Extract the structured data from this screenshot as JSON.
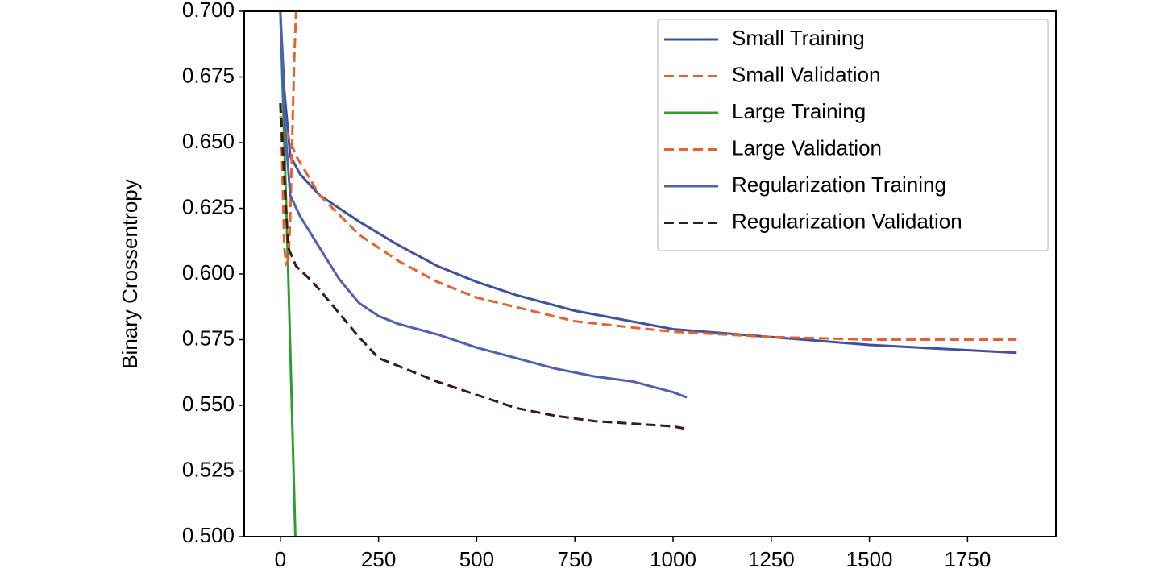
{
  "chart_data": {
    "type": "line",
    "y_label": "Binary Crossentropy",
    "xlim": [
      -92,
      1975
    ],
    "ylim": [
      0.5,
      0.7
    ],
    "xticks": [
      0,
      250,
      500,
      750,
      1000,
      1250,
      1500,
      1750
    ],
    "yticks": [
      {
        "value": 0.5,
        "label": "0.500"
      },
      {
        "value": 0.525,
        "label": "0.525"
      },
      {
        "value": 0.55,
        "label": "0.550"
      },
      {
        "value": 0.575,
        "label": "0.575"
      },
      {
        "value": 0.6,
        "label": "0.600"
      },
      {
        "value": 0.625,
        "label": "0.625"
      },
      {
        "value": 0.65,
        "label": "0.650"
      },
      {
        "value": 0.675,
        "label": "0.675"
      },
      {
        "value": 0.7,
        "label": "0.700"
      }
    ],
    "legend": "upper right",
    "series": [
      {
        "name": "Small Training",
        "color": "#3f51a0",
        "linestyle": "solid",
        "x": [
          0,
          10,
          25,
          50,
          100,
          200,
          300,
          400,
          500,
          600,
          750,
          1000,
          1250,
          1500,
          1750,
          1875
        ],
        "values": [
          0.7,
          0.67,
          0.645,
          0.638,
          0.63,
          0.62,
          0.611,
          0.603,
          0.597,
          0.592,
          0.586,
          0.579,
          0.576,
          0.573,
          0.571,
          0.57
        ]
      },
      {
        "name": "Small Validation",
        "color": "#e8602c",
        "linestyle": "dashed",
        "x": [
          0,
          40,
          100,
          200,
          300,
          400,
          500,
          750,
          1000,
          1250,
          1500,
          1750,
          1875
        ],
        "values": [
          0.66,
          0.645,
          0.63,
          0.615,
          0.605,
          0.597,
          0.591,
          0.582,
          0.578,
          0.576,
          0.575,
          0.575,
          0.575
        ]
      },
      {
        "name": "Large Training",
        "color": "#2ca02c",
        "linestyle": "solid",
        "x": [
          0,
          10,
          20,
          40
        ],
        "values": [
          0.7,
          0.65,
          0.6,
          0.49
        ]
      },
      {
        "name": "Large Validation",
        "color": "#e8602c",
        "linestyle": "dashed",
        "x": [
          0,
          5,
          10,
          15,
          20,
          25,
          30,
          35,
          45
        ],
        "values": [
          0.665,
          0.64,
          0.61,
          0.604,
          0.605,
          0.62,
          0.65,
          0.68,
          0.72
        ]
      },
      {
        "name": "Regularization Training",
        "color": "#5060b0",
        "linestyle": "solid",
        "x": [
          0,
          10,
          25,
          50,
          100,
          150,
          200,
          250,
          300,
          400,
          500,
          600,
          700,
          800,
          900,
          1000,
          1035
        ],
        "values": [
          0.7,
          0.66,
          0.63,
          0.622,
          0.61,
          0.598,
          0.589,
          0.584,
          0.581,
          0.577,
          0.572,
          0.568,
          0.564,
          0.561,
          0.559,
          0.555,
          0.553
        ]
      },
      {
        "name": "Regularization Validation",
        "color": "#3a1a14",
        "linestyle": "dashed",
        "x": [
          0,
          20,
          40,
          75,
          100,
          150,
          200,
          250,
          300,
          400,
          500,
          600,
          700,
          800,
          900,
          1000,
          1035
        ],
        "values": [
          0.665,
          0.61,
          0.603,
          0.598,
          0.594,
          0.585,
          0.576,
          0.568,
          0.565,
          0.559,
          0.554,
          0.549,
          0.546,
          0.544,
          0.543,
          0.542,
          0.541
        ]
      }
    ]
  }
}
